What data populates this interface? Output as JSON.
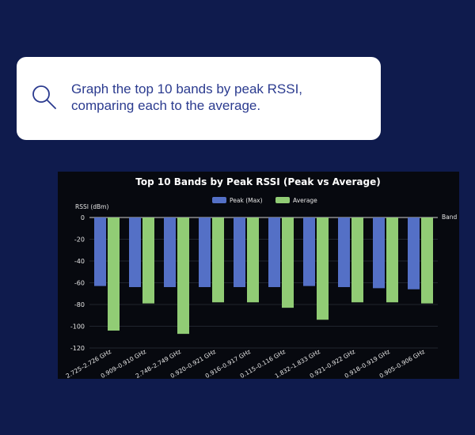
{
  "prompt": {
    "line1": "Graph the top 10 bands by peak RSSI,",
    "line2": "comparing each to the average.",
    "icon": "search-icon"
  },
  "chart_data": {
    "type": "bar",
    "title": "Top 10 Bands by Peak RSSI (Peak vs Average)",
    "xlabel": "Band",
    "ylabel": "RSSI (dBm)",
    "ylim": [
      -120,
      0
    ],
    "yticks": [
      0,
      -20,
      -40,
      -60,
      -80,
      -100,
      -120
    ],
    "legend_position": "top-center",
    "grid": true,
    "categories": [
      "2.725–2.726 GHz",
      "0.909–0.910 GHz",
      "2.748–2.749 GHz",
      "0.920–0.921 GHz",
      "0.916–0.917 GHz",
      "0.115–0.116 GHz",
      "1.832–1.833 GHz",
      "0.921–0.922 GHz",
      "0.918–0.919 GHz",
      "0.905–0.906 GHz"
    ],
    "series": [
      {
        "name": "Peak (Max)",
        "color": "#5470c6",
        "values": [
          -63,
          -64,
          -64,
          -64,
          -64,
          -64,
          -63,
          -64,
          -65,
          -66
        ]
      },
      {
        "name": "Average",
        "color": "#91cc75",
        "values": [
          -104,
          -79,
          -107,
          -78,
          -78,
          -83,
          -94,
          -78,
          -78,
          -79
        ]
      }
    ]
  }
}
